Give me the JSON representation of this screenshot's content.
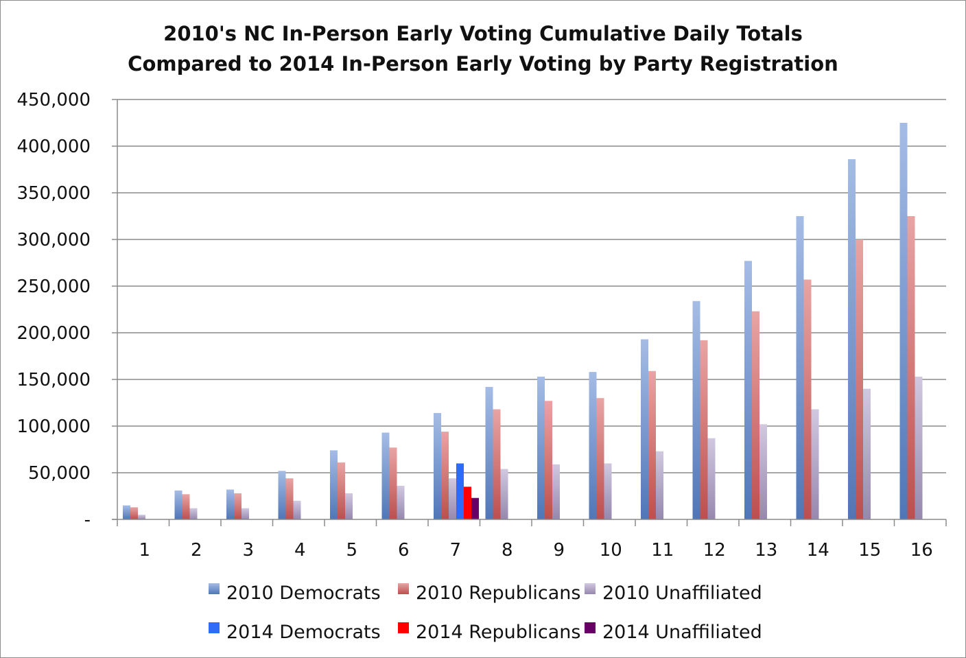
{
  "chart_data": {
    "type": "bar",
    "title_lines": [
      "2010's NC In-Person Early Voting Cumulative Daily Totals",
      "Compared to 2014 In-Person Early Voting by Party Registration"
    ],
    "xlabel": "",
    "ylabel": "",
    "categories": [
      "1",
      "2",
      "3",
      "4",
      "5",
      "6",
      "7",
      "8",
      "9",
      "10",
      "11",
      "12",
      "13",
      "14",
      "15",
      "16"
    ],
    "ylim": [
      0,
      450000
    ],
    "y_ticks": [
      0,
      50000,
      100000,
      150000,
      200000,
      250000,
      300000,
      350000,
      400000,
      450000
    ],
    "y_tick_labels": [
      "-",
      "50,000",
      "100,000",
      "150,000",
      "200,000",
      "250,000",
      "300,000",
      "350,000",
      "400,000",
      "450,000"
    ],
    "grid": true,
    "legend_position": "bottom",
    "series": [
      {
        "name": "2010 Democrats",
        "color": "#5b86d0",
        "gradient": true,
        "values": [
          15000,
          31000,
          32000,
          52000,
          74000,
          93000,
          114000,
          142000,
          153000,
          158000,
          193000,
          234000,
          277000,
          325000,
          386000,
          425000
        ]
      },
      {
        "name": "2010 Republicans",
        "color": "#d65a5a",
        "gradient": true,
        "values": [
          13000,
          27000,
          28000,
          44000,
          61000,
          77000,
          94000,
          118000,
          127000,
          130000,
          159000,
          192000,
          223000,
          257000,
          300000,
          325000
        ]
      },
      {
        "name": "2010 Unaffiliated",
        "color": "#ab9bc6",
        "gradient": true,
        "values": [
          5000,
          12000,
          12000,
          20000,
          28000,
          36000,
          44000,
          54000,
          59000,
          60000,
          73000,
          87000,
          102000,
          118000,
          140000,
          153000
        ]
      },
      {
        "name": "2014 Democrats",
        "color": "#2f6bf6",
        "gradient": false,
        "values": [
          null,
          null,
          null,
          null,
          null,
          null,
          60000,
          null,
          null,
          null,
          null,
          null,
          null,
          null,
          null,
          null
        ]
      },
      {
        "name": "2014 Republicans",
        "color": "#ff0000",
        "gradient": false,
        "values": [
          null,
          null,
          null,
          null,
          null,
          null,
          35000,
          null,
          null,
          null,
          null,
          null,
          null,
          null,
          null,
          null
        ]
      },
      {
        "name": "2014 Unaffiliated",
        "color": "#660066",
        "gradient": false,
        "values": [
          null,
          null,
          null,
          null,
          null,
          null,
          23000,
          null,
          null,
          null,
          null,
          null,
          null,
          null,
          null,
          null
        ]
      }
    ]
  }
}
